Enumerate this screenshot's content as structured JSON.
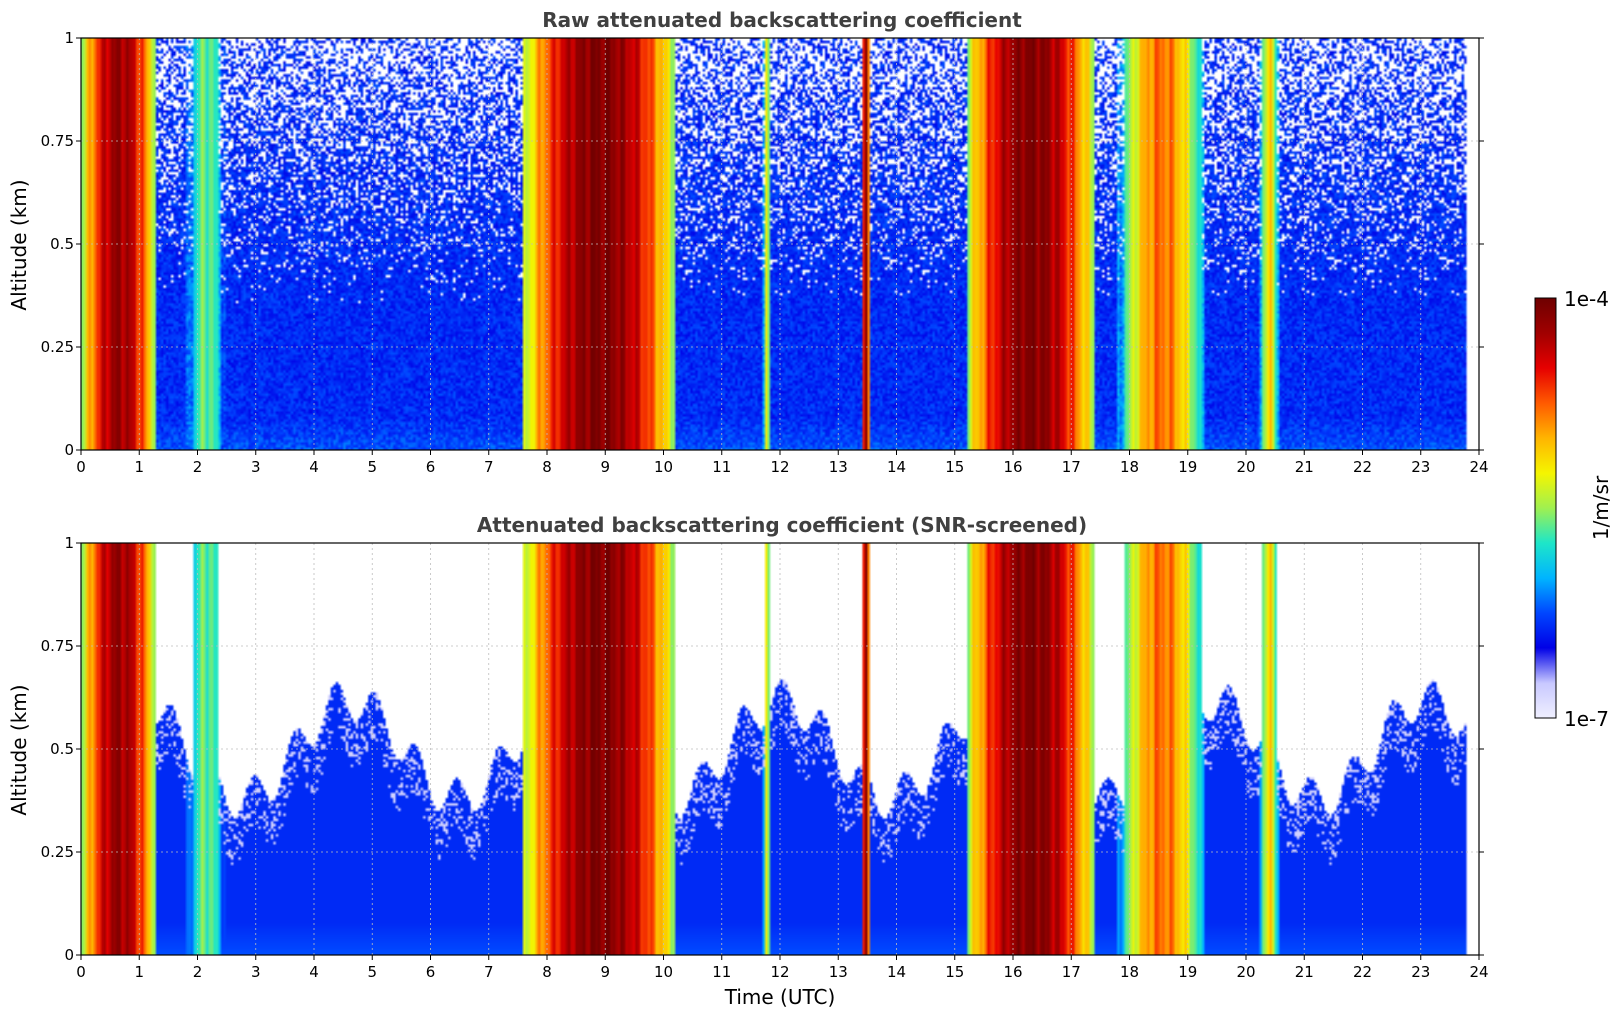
{
  "colors": {
    "no_data": "#ffffff",
    "frame": "#000000",
    "title": "#404040",
    "grid": "#bdbdbd",
    "colormap": [
      "#f0f0ff",
      "#c8c8ff",
      "#0000e6",
      "#0046ff",
      "#00b4ff",
      "#1ee6c8",
      "#a0f050",
      "#f5f500",
      "#ffb400",
      "#ff5a00",
      "#e60000",
      "#a00000",
      "#6e0000",
      "#000000"
    ]
  },
  "chart_data": [
    {
      "type": "heatmap",
      "title": "Raw attenuated backscattering coefficient",
      "xlabel": "",
      "ylabel": "Altitude (km)",
      "xlim": [
        0,
        24
      ],
      "ylim": [
        0,
        1
      ],
      "xticks": [
        "0",
        "1",
        "2",
        "3",
        "4",
        "5",
        "6",
        "7",
        "8",
        "9",
        "10",
        "11",
        "12",
        "13",
        "14",
        "15",
        "16",
        "17",
        "18",
        "19",
        "20",
        "21",
        "22",
        "23",
        "24"
      ],
      "yticks": [
        "0",
        "0.25",
        "0.5",
        "0.75",
        "1"
      ],
      "grid": true,
      "data_end_time": 23.8,
      "cloud_events_utc": [
        {
          "start": 0.0,
          "end": 1.3,
          "peak_log10_beta": -4.2
        },
        {
          "start": 1.7,
          "end": 2.6,
          "peak_log10_beta": -5.6
        },
        {
          "start": 7.6,
          "end": 10.2,
          "peak_log10_beta": -4.1
        },
        {
          "start": 11.7,
          "end": 11.85,
          "peak_log10_beta": -5.3
        },
        {
          "start": 13.4,
          "end": 13.55,
          "peak_log10_beta": -4.2
        },
        {
          "start": 15.2,
          "end": 17.4,
          "peak_log10_beta": -4.1
        },
        {
          "start": 17.8,
          "end": 19.3,
          "peak_log10_beta": -4.8
        },
        {
          "start": 20.2,
          "end": 20.6,
          "peak_log10_beta": -5.2
        }
      ]
    },
    {
      "type": "heatmap",
      "title": "Attenuated backscattering coefficient (SNR-screened)",
      "xlabel": "Time (UTC)",
      "ylabel": "Altitude (km)",
      "xlim": [
        0,
        24
      ],
      "ylim": [
        0,
        1
      ],
      "xticks": [
        "0",
        "1",
        "2",
        "3",
        "4",
        "5",
        "6",
        "7",
        "8",
        "9",
        "10",
        "11",
        "12",
        "13",
        "14",
        "15",
        "16",
        "17",
        "18",
        "19",
        "20",
        "21",
        "22",
        "23",
        "24"
      ],
      "yticks": [
        "0",
        "0.25",
        "0.5",
        "0.75",
        "1"
      ],
      "grid": true,
      "data_end_time": 23.8,
      "screened_above_km_typical": 0.5
    }
  ],
  "colorbar": {
    "label": "1/m/sr",
    "max_label": "1e-4",
    "min_label": "1e-7",
    "range": [
      1e-07,
      0.0001
    ],
    "scale": "log"
  }
}
